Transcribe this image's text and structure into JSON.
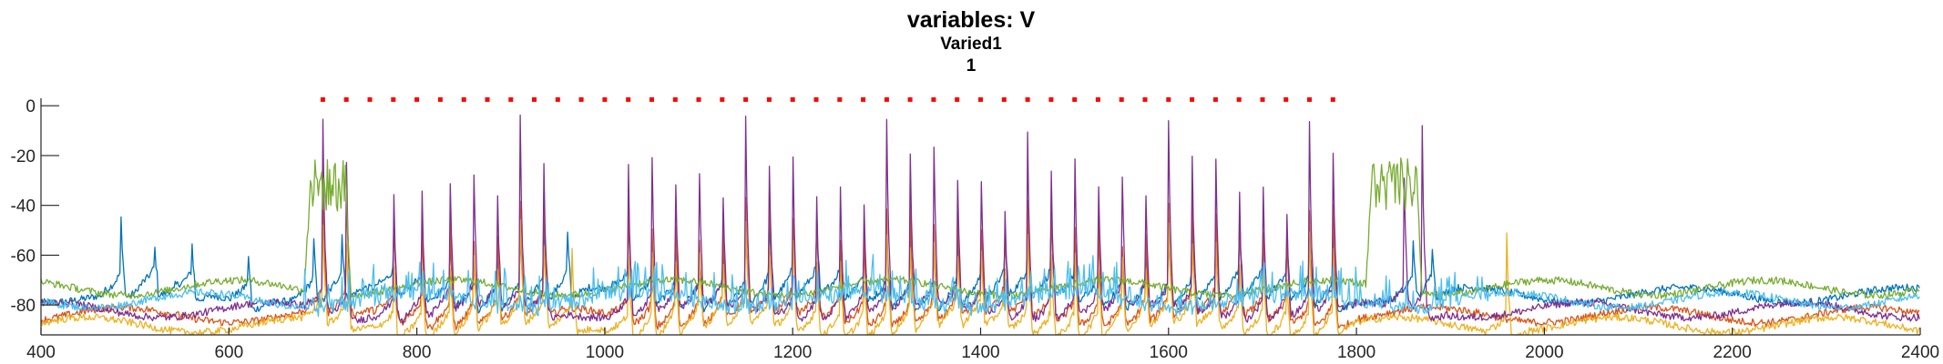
{
  "chart_data": {
    "type": "line",
    "title": "variables: V",
    "subtitle": "Varied1",
    "subtitle2": "1",
    "xlabel": "",
    "ylabel": "",
    "xlim": [
      400,
      2400
    ],
    "ylim": [
      -92,
      3
    ],
    "xticks": [
      400,
      600,
      800,
      1000,
      1200,
      1400,
      1600,
      1800,
      2000,
      2200,
      2400
    ],
    "yticks": [
      0,
      -20,
      -40,
      -60,
      -80
    ],
    "grid": false,
    "legend": "none",
    "marker_series": {
      "color": "#ff0000",
      "y": 2.5,
      "x_start": 700,
      "x_end": 1780,
      "step": 25
    },
    "series": [
      {
        "color": "#0072bd",
        "baseline": -76,
        "spike_times": [
          485,
          520,
          560,
          620,
          690,
          720,
          775,
          805,
          835,
          860,
          885,
          910,
          935,
          960,
          1025,
          1050,
          1075,
          1100,
          1125,
          1150,
          1175,
          1200,
          1225,
          1250,
          1275,
          1300,
          1325,
          1350,
          1375,
          1400,
          1425,
          1450,
          1475,
          1500,
          1525,
          1550,
          1575,
          1600,
          1625,
          1650,
          1675,
          1700,
          1725,
          1750,
          1775,
          1860,
          1880
        ],
        "spike_peak": -40
      },
      {
        "color": "#d95319",
        "baseline": -84,
        "spike_times": [
          700,
          725,
          775,
          805,
          835,
          860,
          885,
          910,
          935,
          1025,
          1050,
          1075,
          1100,
          1125,
          1150,
          1175,
          1200,
          1225,
          1250,
          1275,
          1300,
          1325,
          1350,
          1375,
          1400,
          1425,
          1450,
          1475,
          1500,
          1525,
          1550,
          1575,
          1600,
          1625,
          1650,
          1675,
          1700,
          1725,
          1750,
          1775
        ],
        "spike_peak": -30
      },
      {
        "color": "#edb120",
        "baseline": -88,
        "spike_times": [
          700,
          725,
          775,
          805,
          835,
          860,
          885,
          910,
          935,
          965,
          1025,
          1050,
          1075,
          1100,
          1125,
          1150,
          1175,
          1200,
          1225,
          1250,
          1275,
          1300,
          1325,
          1350,
          1375,
          1400,
          1425,
          1450,
          1475,
          1500,
          1525,
          1550,
          1575,
          1600,
          1625,
          1650,
          1675,
          1700,
          1725,
          1750,
          1775,
          1960
        ],
        "spike_peak": -45
      },
      {
        "color": "#7e2f8e",
        "baseline": -82,
        "spike_times": [
          700,
          725,
          775,
          805,
          835,
          860,
          885,
          910,
          935,
          1025,
          1050,
          1075,
          1100,
          1125,
          1150,
          1175,
          1200,
          1225,
          1250,
          1275,
          1300,
          1325,
          1350,
          1375,
          1400,
          1425,
          1450,
          1475,
          1500,
          1525,
          1550,
          1575,
          1600,
          1625,
          1650,
          1675,
          1700,
          1725,
          1750,
          1775,
          1850,
          1870
        ],
        "spike_peak": -5
      },
      {
        "color": "#77ac30",
        "baseline": -73,
        "bursts": [
          [
            680,
            730,
            -32
          ],
          [
            1810,
            1870,
            -32
          ]
        ],
        "spike_peak": -55
      },
      {
        "color": "#4dbeee",
        "baseline": -78,
        "noise_region": [
          680,
          1940
        ],
        "spike_peak": -65
      }
    ]
  }
}
